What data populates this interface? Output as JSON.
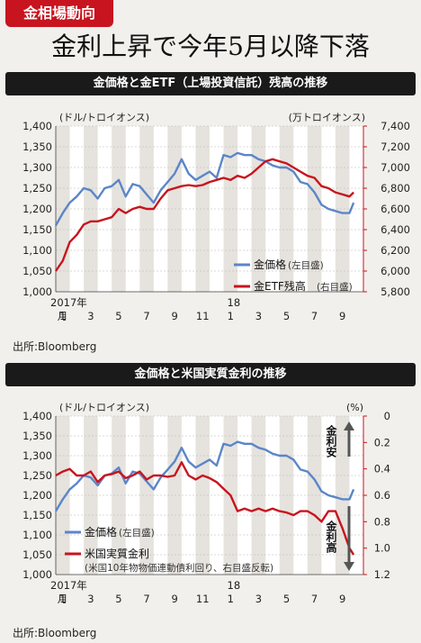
{
  "header": {
    "tag": "金相場動向",
    "title": "金利上昇で今年5月以降下落"
  },
  "source": "出所:Bloomberg",
  "chart_data": [
    {
      "type": "line",
      "title": "金価格と金ETF（上場投資信託）残高の推移",
      "x_labels": [
        "1",
        "3",
        "5",
        "7",
        "9",
        "11",
        "1",
        "3",
        "5",
        "7",
        "9"
      ],
      "year_labels": [
        {
          "text": "2017年",
          "at": 0
        },
        {
          "text": "18",
          "at": 12
        }
      ],
      "month_prefix": "月",
      "n_months": 22,
      "left_axis": {
        "unit": "(ドル/トロイオンス)",
        "ticks": [
          "1,400",
          "1,350",
          "1,300",
          "1,250",
          "1,200",
          "1,150",
          "1,100",
          "1,050",
          "1,000"
        ],
        "ylim": [
          1000,
          1400
        ]
      },
      "right_axis": {
        "unit": "(万トロイオンス)",
        "ticks": [
          "7,400",
          "7,200",
          "7,000",
          "6,800",
          "6,600",
          "6,400",
          "6,200",
          "6,000",
          "5,800"
        ],
        "ylim": [
          5800,
          7400
        ]
      },
      "legend_position": "bottom-right",
      "series": [
        {
          "name": "金価格",
          "axis_note": "(左目盛)",
          "axis": "left",
          "color": "#5b86c8",
          "x": [
            0,
            0.5,
            1,
            1.5,
            2,
            2.5,
            3,
            3.5,
            4,
            4.5,
            5,
            5.5,
            6,
            6.5,
            7,
            7.5,
            8,
            8.5,
            9,
            9.5,
            10,
            10.5,
            11,
            11.5,
            12,
            12.5,
            13,
            13.5,
            14,
            14.5,
            15,
            15.5,
            16,
            16.5,
            17,
            17.5,
            18,
            18.5,
            19,
            19.5,
            20,
            20.5,
            21,
            21.3
          ],
          "y": [
            1160,
            1190,
            1215,
            1230,
            1250,
            1245,
            1225,
            1250,
            1255,
            1270,
            1230,
            1260,
            1255,
            1235,
            1215,
            1245,
            1265,
            1285,
            1320,
            1285,
            1270,
            1280,
            1290,
            1275,
            1330,
            1325,
            1335,
            1330,
            1330,
            1320,
            1315,
            1305,
            1300,
            1300,
            1290,
            1265,
            1260,
            1240,
            1210,
            1200,
            1195,
            1190,
            1190,
            1215
          ]
        },
        {
          "name": "金ETF残高",
          "axis_note": "(右目盛)",
          "axis": "right",
          "color": "#c8141e",
          "x": [
            0,
            0.5,
            1,
            1.5,
            2,
            2.5,
            3,
            3.5,
            4,
            4.5,
            5,
            5.5,
            6,
            6.5,
            7,
            7.5,
            8,
            8.5,
            9,
            9.5,
            10,
            10.5,
            11,
            11.5,
            12,
            12.5,
            13,
            13.5,
            14,
            14.5,
            15,
            15.5,
            16,
            16.5,
            17,
            17.5,
            18,
            18.5,
            19,
            19.5,
            20,
            20.5,
            21,
            21.3
          ],
          "y": [
            6000,
            6100,
            6280,
            6350,
            6450,
            6480,
            6480,
            6500,
            6520,
            6600,
            6560,
            6600,
            6620,
            6600,
            6600,
            6700,
            6780,
            6800,
            6820,
            6830,
            6820,
            6830,
            6860,
            6880,
            6900,
            6880,
            6920,
            6900,
            6940,
            7000,
            7060,
            7080,
            7060,
            7040,
            7000,
            6960,
            6920,
            6900,
            6820,
            6800,
            6760,
            6740,
            6720,
            6760
          ]
        }
      ]
    },
    {
      "type": "line",
      "title": "金価格と米国実質金利の推移",
      "x_labels": [
        "1",
        "3",
        "5",
        "7",
        "9",
        "11",
        "1",
        "3",
        "5",
        "7",
        "9"
      ],
      "year_labels": [
        {
          "text": "2017年",
          "at": 0
        },
        {
          "text": "18",
          "at": 12
        }
      ],
      "month_prefix": "月",
      "n_months": 22,
      "left_axis": {
        "unit": "(ドル/トロイオンス)",
        "ticks": [
          "1,400",
          "1,350",
          "1,300",
          "1,250",
          "1,200",
          "1,150",
          "1,100",
          "1,050",
          "1,000"
        ],
        "ylim": [
          1000,
          1400
        ]
      },
      "right_axis": {
        "unit": "(%)",
        "ticks": [
          "0",
          "0.2",
          "0.4",
          "0.6",
          "0.8",
          "1.0",
          "1.2"
        ],
        "ylim": [
          0,
          1.2
        ],
        "reversed": true
      },
      "annotations": {
        "up": "金利安",
        "down": "金利高"
      },
      "legend_position": "bottom-left",
      "series": [
        {
          "name": "金価格",
          "axis_note": "(左目盛)",
          "axis": "left",
          "color": "#5b86c8",
          "x": [
            0,
            0.5,
            1,
            1.5,
            2,
            2.5,
            3,
            3.5,
            4,
            4.5,
            5,
            5.5,
            6,
            6.5,
            7,
            7.5,
            8,
            8.5,
            9,
            9.5,
            10,
            10.5,
            11,
            11.5,
            12,
            12.5,
            13,
            13.5,
            14,
            14.5,
            15,
            15.5,
            16,
            16.5,
            17,
            17.5,
            18,
            18.5,
            19,
            19.5,
            20,
            20.5,
            21,
            21.3
          ],
          "y": [
            1160,
            1190,
            1215,
            1230,
            1250,
            1245,
            1225,
            1250,
            1255,
            1270,
            1230,
            1260,
            1255,
            1235,
            1215,
            1245,
            1265,
            1285,
            1320,
            1285,
            1270,
            1280,
            1290,
            1275,
            1330,
            1325,
            1335,
            1330,
            1330,
            1320,
            1315,
            1305,
            1300,
            1300,
            1290,
            1265,
            1260,
            1240,
            1210,
            1200,
            1195,
            1190,
            1190,
            1215
          ]
        },
        {
          "name": "米国実質金利",
          "axis_note": "(米国10年物物価連動債利回り、右目盛反転)",
          "axis": "right",
          "color": "#c8141e",
          "x": [
            0,
            0.5,
            1,
            1.5,
            2,
            2.5,
            3,
            3.5,
            4,
            4.5,
            5,
            5.5,
            6,
            6.5,
            7,
            7.5,
            8,
            8.5,
            9,
            9.5,
            10,
            10.5,
            11,
            11.5,
            12,
            12.5,
            13,
            13.5,
            14,
            14.5,
            15,
            15.5,
            16,
            16.5,
            17,
            17.5,
            18,
            18.5,
            19,
            19.5,
            20,
            20.5,
            21,
            21.3
          ],
          "y": [
            0.45,
            0.42,
            0.4,
            0.45,
            0.45,
            0.42,
            0.5,
            0.45,
            0.44,
            0.42,
            0.47,
            0.45,
            0.42,
            0.48,
            0.45,
            0.45,
            0.46,
            0.45,
            0.35,
            0.45,
            0.48,
            0.45,
            0.47,
            0.5,
            0.55,
            0.6,
            0.72,
            0.7,
            0.72,
            0.7,
            0.72,
            0.7,
            0.72,
            0.73,
            0.75,
            0.72,
            0.72,
            0.75,
            0.8,
            0.72,
            0.72,
            0.85,
            1.0,
            1.05
          ]
        }
      ]
    }
  ]
}
